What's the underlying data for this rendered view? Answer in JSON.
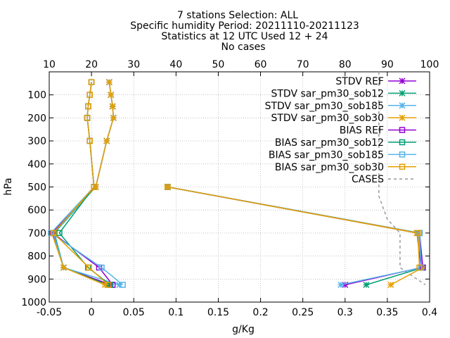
{
  "title_lines": [
    "7 stations Selection: ALL",
    "Specific humidity  Period: 20211110-20211123",
    "Statistics at 12 UTC  Used 12 + 24",
    "No cases"
  ],
  "chart_data": {
    "type": "line",
    "title": "7 stations Selection: ALL",
    "subtitle": "Specific humidity  Period: 20211110-20211123",
    "xlabel": "g/Kg",
    "ylabel": "hPa",
    "xlim": [
      -0.05,
      0.4
    ],
    "ylim": [
      1000,
      0
    ],
    "x_ticks": [
      "-0.05",
      "0",
      "0.05",
      "0.1",
      "0.15",
      "0.2",
      "0.25",
      "0.3",
      "0.35",
      "0.4"
    ],
    "y_ticks": [
      "100",
      "200",
      "300",
      "400",
      "500",
      "600",
      "700",
      "800",
      "900",
      "1000"
    ],
    "x2lim": [
      10,
      100
    ],
    "x2_ticks": [
      "10",
      "20",
      "30",
      "40",
      "50",
      "60",
      "70",
      "80",
      "90",
      "100"
    ],
    "grid": true,
    "legend_position": "top-right",
    "series": [
      {
        "name": "STDV REF",
        "color": "#9400d3",
        "marker": "star",
        "dash": false,
        "points": [
          [
            0.021,
            45
          ],
          [
            0.023,
            100
          ],
          [
            0.025,
            150
          ],
          [
            0.026,
            200
          ],
          [
            0.018,
            300
          ],
          [
            0.005,
            500
          ],
          [
            -0.046,
            700
          ],
          [
            -0.033,
            850
          ],
          [
            0.023,
            925
          ]
        ]
      },
      {
        "name": "STDV sar_pm30_sob12",
        "color": "#009e73",
        "marker": "star",
        "dash": false,
        "points": [
          [
            0.021,
            45
          ],
          [
            0.023,
            100
          ],
          [
            0.025,
            150
          ],
          [
            0.026,
            200
          ],
          [
            0.018,
            300
          ],
          [
            0.005,
            500
          ],
          [
            -0.044,
            700
          ],
          [
            -0.033,
            850
          ],
          [
            0.019,
            925
          ]
        ]
      },
      {
        "name": "STDV sar_pm30_sob185",
        "color": "#56b4e9",
        "marker": "star",
        "dash": false,
        "points": [
          [
            0.021,
            45
          ],
          [
            0.023,
            100
          ],
          [
            0.025,
            150
          ],
          [
            0.026,
            200
          ],
          [
            0.018,
            300
          ],
          [
            0.005,
            500
          ],
          [
            -0.045,
            700
          ],
          [
            -0.033,
            850
          ],
          [
            0.033,
            925
          ]
        ]
      },
      {
        "name": "STDV sar_pm30_sob30",
        "color": "#e69f00",
        "marker": "star",
        "dash": false,
        "points": [
          [
            0.021,
            45
          ],
          [
            0.023,
            100
          ],
          [
            0.025,
            150
          ],
          [
            0.026,
            200
          ],
          [
            0.018,
            300
          ],
          [
            0.005,
            500
          ],
          [
            -0.047,
            700
          ],
          [
            -0.033,
            850
          ],
          [
            0.016,
            925
          ]
        ]
      },
      {
        "name": "BIAS REF",
        "color": "#9400d3",
        "marker": "square",
        "dash": false,
        "points": [
          [
            0.0,
            45
          ],
          [
            -0.002,
            100
          ],
          [
            -0.004,
            150
          ],
          [
            -0.005,
            200
          ],
          [
            -0.002,
            300
          ],
          [
            0.003,
            500
          ],
          [
            -0.046,
            700
          ],
          [
            0.009,
            850
          ],
          [
            0.025,
            925
          ]
        ]
      },
      {
        "name": "BIAS sar_pm30_sob12",
        "color": "#009e73",
        "marker": "square",
        "dash": false,
        "points": [
          [
            0.0,
            45
          ],
          [
            -0.002,
            100
          ],
          [
            -0.004,
            150
          ],
          [
            -0.005,
            200
          ],
          [
            -0.002,
            300
          ],
          [
            0.003,
            500
          ],
          [
            -0.038,
            700
          ],
          [
            -0.004,
            850
          ],
          [
            0.022,
            925
          ]
        ]
      },
      {
        "name": "BIAS sar_pm30_sob185",
        "color": "#56b4e9",
        "marker": "square",
        "dash": false,
        "points": [
          [
            0.0,
            45
          ],
          [
            -0.002,
            100
          ],
          [
            -0.004,
            150
          ],
          [
            -0.005,
            200
          ],
          [
            -0.002,
            300
          ],
          [
            0.003,
            500
          ],
          [
            -0.048,
            700
          ],
          [
            0.012,
            850
          ],
          [
            0.037,
            925
          ]
        ]
      },
      {
        "name": "BIAS sar_pm30_sob30",
        "color": "#e69f00",
        "marker": "square",
        "dash": false,
        "points": [
          [
            0.0,
            45
          ],
          [
            -0.002,
            100
          ],
          [
            -0.004,
            150
          ],
          [
            -0.005,
            200
          ],
          [
            -0.002,
            300
          ],
          [
            0.003,
            500
          ],
          [
            -0.045,
            700
          ],
          [
            -0.003,
            850
          ],
          [
            0.02,
            925
          ]
        ]
      },
      {
        "name": "CASES",
        "color": "#999999",
        "marker": "none",
        "dash": true,
        "axis": "top",
        "points": [
          [
            88,
            0
          ],
          [
            88,
            480
          ],
          [
            88,
            540
          ],
          [
            89,
            590
          ],
          [
            90,
            640
          ],
          [
            93,
            700
          ],
          [
            93,
            820
          ],
          [
            93,
            850
          ],
          [
            99,
            925
          ]
        ]
      }
    ],
    "extra_series": [
      {
        "color": "#9400d3",
        "marker": "star",
        "points": [
          [
            0.09,
            500
          ],
          [
            0.385,
            700
          ],
          [
            0.39,
            850
          ],
          [
            0.3,
            925
          ]
        ]
      },
      {
        "color": "#009e73",
        "marker": "star",
        "points": [
          [
            0.09,
            500
          ],
          [
            0.386,
            700
          ],
          [
            0.392,
            850
          ],
          [
            0.325,
            925
          ]
        ]
      },
      {
        "color": "#56b4e9",
        "marker": "star",
        "points": [
          [
            0.09,
            500
          ],
          [
            0.386,
            700
          ],
          [
            0.391,
            850
          ],
          [
            0.295,
            925
          ]
        ]
      },
      {
        "color": "#e69f00",
        "marker": "star",
        "points": [
          [
            0.09,
            500
          ],
          [
            0.385,
            700
          ],
          [
            0.392,
            850
          ],
          [
            0.354,
            925
          ]
        ]
      },
      {
        "color": "#9400d3",
        "marker": "square",
        "points": [
          [
            0.09,
            500
          ],
          [
            0.388,
            700
          ],
          [
            0.392,
            850
          ]
        ]
      },
      {
        "color": "#009e73",
        "marker": "square",
        "points": [
          [
            0.09,
            500
          ],
          [
            0.388,
            700
          ],
          [
            0.39,
            850
          ]
        ]
      },
      {
        "color": "#56b4e9",
        "marker": "square",
        "points": [
          [
            0.09,
            500
          ],
          [
            0.388,
            700
          ],
          [
            0.39,
            850
          ]
        ]
      },
      {
        "color": "#e69f00",
        "marker": "square",
        "points": [
          [
            0.09,
            500
          ],
          [
            0.386,
            700
          ],
          [
            0.388,
            850
          ]
        ]
      }
    ]
  }
}
